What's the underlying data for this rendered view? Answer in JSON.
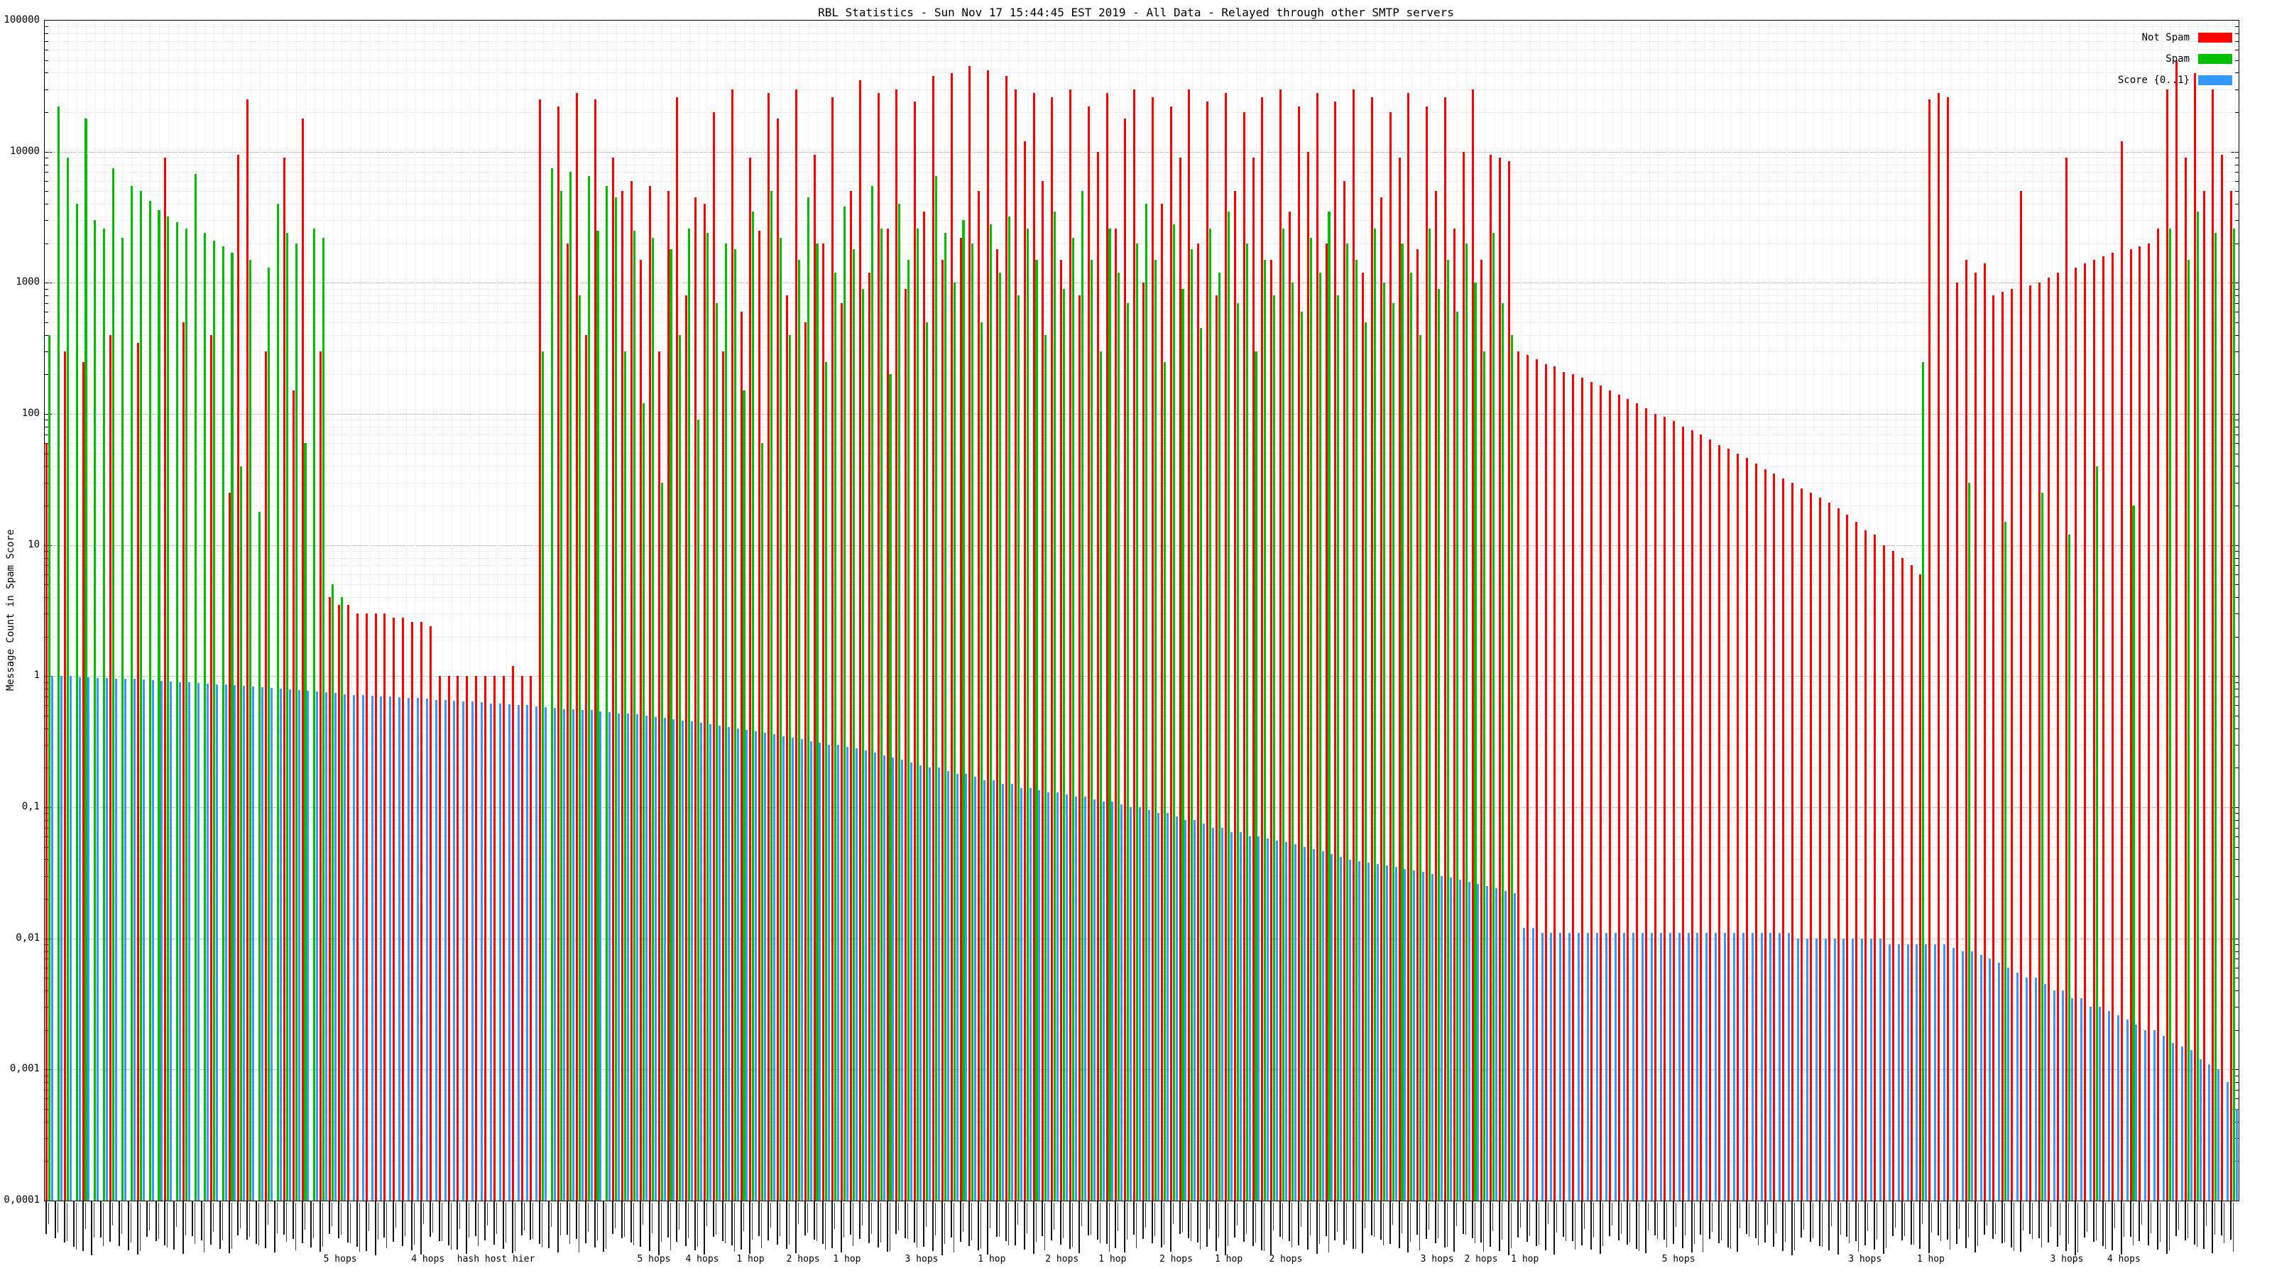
{
  "title": "RBL Statistics - Sun Nov 17 15:44:45 EST 2019 - All Data - Relayed through other SMTP servers",
  "legend": [
    {
      "label": "Not Spam",
      "color": "#ff0000"
    },
    {
      "label": "Spam",
      "color": "#00c000"
    },
    {
      "label": "Score {0..1}",
      "color": "#3399ff"
    }
  ],
  "y_axis": {
    "label": "Message Count in Spam Score",
    "ticks": [
      "100000",
      "10000",
      "1000",
      "100",
      "10",
      "1",
      "0,1",
      "0,01",
      "0,001",
      "0,0001"
    ]
  },
  "x_axis": {
    "annotations": [
      {
        "label": "5 hops",
        "pos": 0.135
      },
      {
        "label": "4 hops",
        "pos": 0.175
      },
      {
        "label": "hash host hier",
        "pos": 0.206
      },
      {
        "label": "5 hops",
        "pos": 0.278
      },
      {
        "label": "4 hops",
        "pos": 0.3
      },
      {
        "label": "1 hop",
        "pos": 0.322
      },
      {
        "label": "2 hops",
        "pos": 0.346
      },
      {
        "label": "1 hop",
        "pos": 0.366
      },
      {
        "label": "3 hops",
        "pos": 0.4
      },
      {
        "label": "1 hop",
        "pos": 0.432
      },
      {
        "label": "2 hops",
        "pos": 0.464
      },
      {
        "label": "1 hop",
        "pos": 0.487
      },
      {
        "label": "2 hops",
        "pos": 0.516
      },
      {
        "label": "1 hop",
        "pos": 0.54
      },
      {
        "label": "2 hops",
        "pos": 0.566
      },
      {
        "label": "3 hops",
        "pos": 0.635
      },
      {
        "label": "2 hops",
        "pos": 0.655
      },
      {
        "label": "1 hop",
        "pos": 0.675
      },
      {
        "label": "5 hops",
        "pos": 0.745
      },
      {
        "label": "3 hops",
        "pos": 0.83
      },
      {
        "label": "1 hop",
        "pos": 0.86
      },
      {
        "label": "3 hops",
        "pos": 0.922
      },
      {
        "label": "4 hops",
        "pos": 0.948
      }
    ]
  },
  "chart_data": {
    "type": "bar",
    "yscale": "log",
    "ylim": [
      0.0001,
      100000
    ],
    "xlabel": "",
    "ylabel": "Message Count in Spam Score",
    "grid": true,
    "legend_position": "top-right",
    "n_groups": 240,
    "series": [
      {
        "name": "Not Spam",
        "color": "#ff0000",
        "values": [
          60,
          0,
          300,
          0,
          250,
          0,
          0,
          400,
          0,
          0,
          350,
          0,
          0,
          9000,
          0,
          500,
          0,
          0,
          400,
          0,
          25,
          9500,
          25000,
          0,
          300,
          0,
          9000,
          150,
          18000,
          0,
          300,
          4,
          3.5,
          3.5,
          3,
          3,
          3,
          3,
          2.8,
          2.8,
          2.6,
          2.6,
          2.4,
          1,
          1,
          1,
          1,
          1,
          1,
          1,
          1,
          1.2,
          1,
          1,
          25000,
          0,
          22000,
          2000,
          28000,
          400,
          25000,
          0,
          9000,
          5000,
          6000,
          1500,
          5500,
          300,
          5000,
          26000,
          800,
          4500,
          4000,
          20000,
          300,
          30000,
          600,
          9000,
          2500,
          28000,
          18000,
          800,
          30000,
          500,
          9500,
          2000,
          26000,
          700,
          5000,
          35000,
          1200,
          28000,
          2600,
          30000,
          900,
          24000,
          3500,
          38000,
          1500,
          40000,
          2200,
          45000,
          5000,
          42000,
          1800,
          38000,
          30000,
          12000,
          28000,
          6000,
          26000,
          1500,
          30000,
          800,
          22000,
          10000,
          28000,
          2600,
          18000,
          30000,
          1000,
          26000,
          4000,
          22000,
          9000,
          30000,
          2000,
          24000,
          800,
          28000,
          5000,
          20000,
          9000,
          26000,
          1500,
          30000,
          3500,
          22000,
          10000,
          28000,
          2000,
          24000,
          6000,
          30000,
          1200,
          26000,
          4500,
          20000,
          9000,
          28000,
          1800,
          22000,
          5000,
          26000,
          2600,
          10000,
          30000,
          1500,
          9500,
          9000,
          8500,
          300,
          280,
          260,
          240,
          230,
          210,
          200,
          190,
          175,
          165,
          150,
          140,
          130,
          120,
          110,
          100,
          95,
          88,
          80,
          75,
          70,
          64,
          58,
          54,
          50,
          46,
          42,
          38,
          35,
          32,
          30,
          27,
          25,
          23,
          21,
          19,
          17,
          15,
          13,
          12,
          10,
          9,
          8,
          7,
          6,
          25000,
          28000,
          26000,
          1000,
          1500,
          1200,
          1400,
          800,
          850,
          900,
          5000,
          950,
          1000,
          1100,
          1200,
          9000,
          1300,
          1400,
          1500,
          1600,
          1700,
          12000,
          1800,
          1900,
          2000,
          2600,
          30000,
          50000,
          9000,
          40000,
          5000,
          30000,
          9500,
          5000
        ]
      },
      {
        "name": "Spam",
        "color": "#00c000",
        "values": [
          400,
          22000,
          9000,
          4000,
          18000,
          3000,
          2600,
          7500,
          2200,
          5500,
          5000,
          4200,
          3600,
          3200,
          2900,
          2600,
          6800,
          2400,
          2100,
          1900,
          1700,
          40,
          1500,
          18,
          1300,
          4000,
          2400,
          2000,
          60,
          2600,
          2200,
          5,
          4,
          0,
          0,
          0,
          0,
          0,
          0,
          0,
          0,
          0,
          0,
          0,
          0,
          0,
          0,
          0,
          0,
          0,
          0,
          0,
          0,
          0,
          300,
          7500,
          5000,
          7000,
          800,
          6500,
          2500,
          5500,
          4500,
          300,
          2500,
          120,
          2200,
          30,
          1800,
          400,
          2600,
          90,
          2400,
          700,
          2000,
          1800,
          150,
          3500,
          60,
          5000,
          2200,
          400,
          1500,
          4500,
          2000,
          250,
          1200,
          3800,
          1800,
          900,
          5500,
          2600,
          200,
          4000,
          1500,
          2600,
          500,
          6500,
          2400,
          1000,
          3000,
          2000,
          500,
          2800,
          1200,
          3200,
          800,
          2600,
          1500,
          400,
          3500,
          900,
          2200,
          5000,
          1500,
          300,
          2600,
          1200,
          700,
          2000,
          4000,
          1500,
          250,
          2800,
          900,
          1800,
          450,
          2600,
          1200,
          3500,
          700,
          2000,
          300,
          1500,
          800,
          2600,
          1000,
          600,
          2200,
          1200,
          3500,
          800,
          2000,
          1500,
          500,
          2600,
          1000,
          700,
          2000,
          1200,
          400,
          2600,
          900,
          1500,
          600,
          2000,
          1000,
          300,
          2400,
          700,
          400,
          0,
          0,
          0,
          0,
          0,
          0,
          0,
          0,
          0,
          0,
          0,
          0,
          0,
          0,
          0,
          0,
          0,
          0,
          0,
          0,
          0,
          0,
          0,
          0,
          0,
          0,
          0,
          0,
          0,
          0,
          0,
          0,
          0,
          0,
          0,
          0,
          0,
          0,
          0,
          0,
          0,
          0,
          0,
          0,
          250,
          0,
          0,
          0,
          0,
          30,
          0,
          0,
          0,
          15,
          0,
          0,
          0,
          25,
          0,
          0,
          12,
          0,
          0,
          40,
          0,
          0,
          0,
          20,
          0,
          0,
          0,
          2600,
          0,
          1500,
          3500,
          0,
          2400,
          0,
          2600
        ]
      },
      {
        "name": "Score {0..1}",
        "color": "#3399ff",
        "values": [
          1.0,
          1.0,
          1.0,
          0.98,
          0.98,
          0.97,
          0.97,
          0.96,
          0.95,
          0.95,
          0.94,
          0.93,
          0.92,
          0.91,
          0.9,
          0.9,
          0.89,
          0.88,
          0.87,
          0.86,
          0.85,
          0.84,
          0.83,
          0.82,
          0.81,
          0.8,
          0.79,
          0.78,
          0.77,
          0.76,
          0.75,
          0.74,
          0.73,
          0.72,
          0.72,
          0.71,
          0.7,
          0.7,
          0.69,
          0.68,
          0.68,
          0.67,
          0.66,
          0.66,
          0.65,
          0.64,
          0.64,
          0.63,
          0.62,
          0.62,
          0.61,
          0.6,
          0.6,
          0.59,
          0.58,
          0.57,
          0.56,
          0.56,
          0.55,
          0.55,
          0.54,
          0.53,
          0.52,
          0.52,
          0.51,
          0.5,
          0.49,
          0.48,
          0.47,
          0.46,
          0.45,
          0.44,
          0.43,
          0.42,
          0.41,
          0.4,
          0.39,
          0.38,
          0.37,
          0.36,
          0.35,
          0.34,
          0.33,
          0.32,
          0.31,
          0.3,
          0.3,
          0.29,
          0.28,
          0.27,
          0.26,
          0.25,
          0.24,
          0.23,
          0.22,
          0.21,
          0.2,
          0.2,
          0.19,
          0.18,
          0.18,
          0.17,
          0.16,
          0.16,
          0.15,
          0.15,
          0.14,
          0.14,
          0.135,
          0.13,
          0.13,
          0.125,
          0.12,
          0.12,
          0.115,
          0.11,
          0.11,
          0.105,
          0.1,
          0.1,
          0.095,
          0.09,
          0.09,
          0.085,
          0.08,
          0.08,
          0.075,
          0.07,
          0.07,
          0.065,
          0.065,
          0.06,
          0.06,
          0.058,
          0.056,
          0.054,
          0.052,
          0.05,
          0.048,
          0.046,
          0.044,
          0.042,
          0.04,
          0.039,
          0.038,
          0.037,
          0.036,
          0.035,
          0.034,
          0.033,
          0.032,
          0.031,
          0.03,
          0.029,
          0.028,
          0.027,
          0.026,
          0.025,
          0.024,
          0.023,
          0.022,
          0.012,
          0.012,
          0.011,
          0.011,
          0.011,
          0.011,
          0.011,
          0.011,
          0.011,
          0.011,
          0.011,
          0.011,
          0.011,
          0.011,
          0.011,
          0.011,
          0.011,
          0.011,
          0.011,
          0.011,
          0.011,
          0.011,
          0.011,
          0.011,
          0.011,
          0.011,
          0.011,
          0.011,
          0.011,
          0.011,
          0.01,
          0.01,
          0.01,
          0.01,
          0.01,
          0.01,
          0.01,
          0.01,
          0.01,
          0.01,
          0.009,
          0.009,
          0.009,
          0.009,
          0.009,
          0.009,
          0.009,
          0.0085,
          0.008,
          0.008,
          0.0075,
          0.007,
          0.0065,
          0.006,
          0.0055,
          0.005,
          0.005,
          0.0045,
          0.004,
          0.004,
          0.0035,
          0.0035,
          0.003,
          0.003,
          0.0028,
          0.0026,
          0.0024,
          0.0022,
          0.002,
          0.002,
          0.0018,
          0.0016,
          0.0015,
          0.0014,
          0.0012,
          0.0011,
          0.001,
          0.0008,
          0.0005
        ]
      }
    ]
  }
}
